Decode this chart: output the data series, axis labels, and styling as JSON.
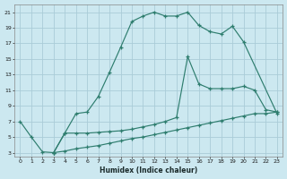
{
  "xlabel": "Humidex (Indice chaleur)",
  "bg_color": "#cce8f0",
  "grid_color": "#aaccd8",
  "line_color": "#2e7d6e",
  "xlim": [
    -0.5,
    23.5
  ],
  "ylim": [
    2.5,
    22.0
  ],
  "xticks": [
    0,
    1,
    2,
    3,
    4,
    5,
    6,
    7,
    8,
    9,
    10,
    11,
    12,
    13,
    14,
    15,
    16,
    17,
    18,
    19,
    20,
    21,
    22,
    23
  ],
  "yticks": [
    3,
    5,
    7,
    9,
    11,
    13,
    15,
    17,
    19,
    21
  ],
  "curve1_x": [
    0,
    1,
    2,
    3,
    4,
    5,
    6,
    7,
    8,
    9,
    10,
    11,
    12,
    13,
    14,
    15,
    16,
    17,
    18,
    19,
    20,
    23
  ],
  "curve1_y": [
    7.0,
    5.0,
    3.1,
    3.0,
    5.5,
    8.0,
    8.2,
    10.2,
    13.3,
    16.5,
    19.8,
    20.5,
    21.0,
    20.5,
    20.5,
    21.0,
    19.3,
    18.5,
    18.2,
    19.2,
    17.2,
    8.0
  ],
  "curve2_x": [
    3,
    4,
    5,
    6,
    7,
    8,
    9,
    10,
    11,
    12,
    13,
    14,
    15,
    16,
    17,
    18,
    19,
    20,
    21,
    22,
    23
  ],
  "curve2_y": [
    3.0,
    5.5,
    5.5,
    5.5,
    5.6,
    5.7,
    5.8,
    6.0,
    6.3,
    6.6,
    7.0,
    7.5,
    15.3,
    11.8,
    11.2,
    11.2,
    11.2,
    11.5,
    11.0,
    8.5,
    8.2
  ],
  "curve3_x": [
    3,
    4,
    5,
    6,
    7,
    8,
    9,
    10,
    11,
    12,
    13,
    14,
    15,
    16,
    17,
    18,
    19,
    20,
    21,
    22,
    23
  ],
  "curve3_y": [
    3.0,
    3.2,
    3.5,
    3.7,
    3.9,
    4.2,
    4.5,
    4.8,
    5.0,
    5.3,
    5.6,
    5.9,
    6.2,
    6.5,
    6.8,
    7.1,
    7.4,
    7.7,
    8.0,
    8.0,
    8.2
  ]
}
